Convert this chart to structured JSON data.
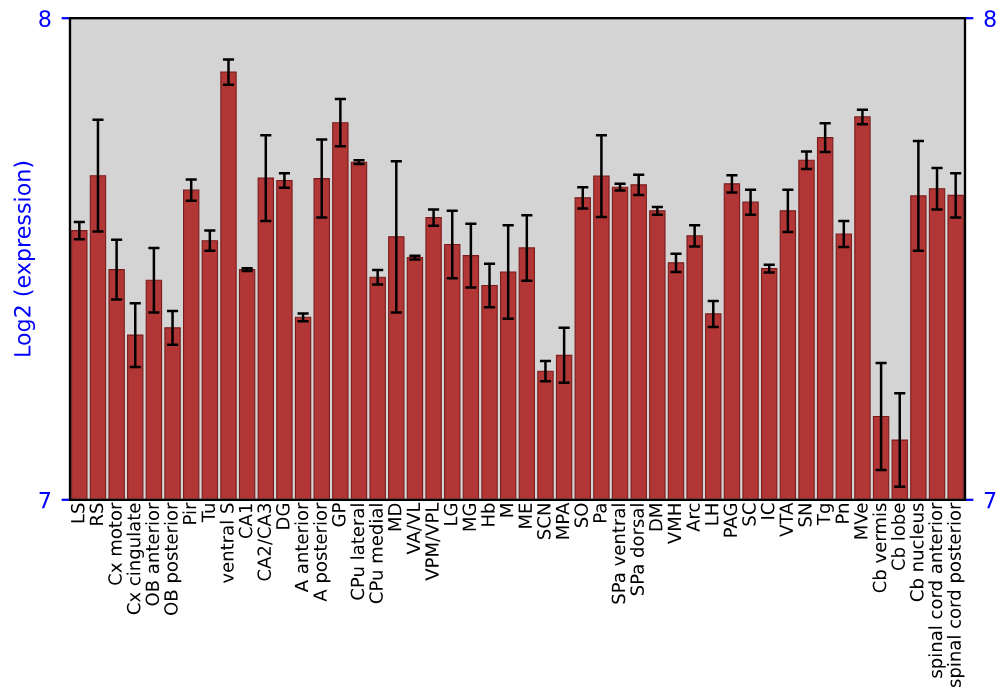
{
  "chart_data": {
    "type": "bar",
    "ylabel": "Log2 (expression)",
    "categories": [
      "LS",
      "RS",
      "Cx motor",
      "Cx cingulate",
      "OB anterior",
      "OB posterior",
      "Pir",
      "Tu",
      "ventral S",
      "CA1",
      "CA2/CA3",
      "DG",
      "A anterior",
      "A posterior",
      "GP",
      "CPu lateral",
      "CPu medial",
      "MD",
      "VA/VL",
      "VPM/VPL",
      "LG",
      "MG",
      "Hb",
      "M",
      "ME",
      "SCN",
      "MPA",
      "SO",
      "Pa",
      "SPa ventral",
      "SPa dorsal",
      "DM",
      "VMH",
      "Arc",
      "LH",
      "PAG",
      "SC",
      "IC",
      "VTA",
      "SN",
      "Tg",
      "Pn",
      "MVe",
      "Cb vermis",
      "Cb lobe",
      "Cb nucleus",
      "spinal cord anterior",
      "spinal cord posterior"
    ],
    "values": [
      7.559,
      7.673,
      7.478,
      7.342,
      7.456,
      7.357,
      7.643,
      7.538,
      7.888,
      7.478,
      7.668,
      7.663,
      7.379,
      7.667,
      7.783,
      7.701,
      7.462,
      7.546,
      7.503,
      7.586,
      7.53,
      7.507,
      7.445,
      7.473,
      7.523,
      7.267,
      7.3,
      7.627,
      7.672,
      7.649,
      7.654,
      7.6,
      7.492,
      7.548,
      7.386,
      7.656,
      7.618,
      7.48,
      7.6,
      7.705,
      7.752,
      7.552,
      7.795,
      7.173,
      7.124,
      7.631,
      7.646,
      7.632
    ],
    "errors": [
      0.018,
      0.116,
      0.062,
      0.066,
      0.067,
      0.035,
      0.022,
      0.021,
      0.026,
      0.003,
      0.089,
      0.015,
      0.008,
      0.081,
      0.049,
      0.004,
      0.015,
      0.157,
      0.004,
      0.017,
      0.07,
      0.066,
      0.045,
      0.097,
      0.068,
      0.021,
      0.057,
      0.022,
      0.085,
      0.007,
      0.021,
      0.008,
      0.019,
      0.022,
      0.027,
      0.018,
      0.026,
      0.008,
      0.044,
      0.018,
      0.03,
      0.027,
      0.015,
      0.111,
      0.097,
      0.114,
      0.043,
      0.046
    ],
    "color": "#b33636",
    "ylim": [
      7,
      8
    ],
    "yticks": [
      7,
      8
    ],
    "y2lim": [
      7,
      8
    ],
    "y2ticks": [
      7,
      8
    ],
    "grid": false
  }
}
